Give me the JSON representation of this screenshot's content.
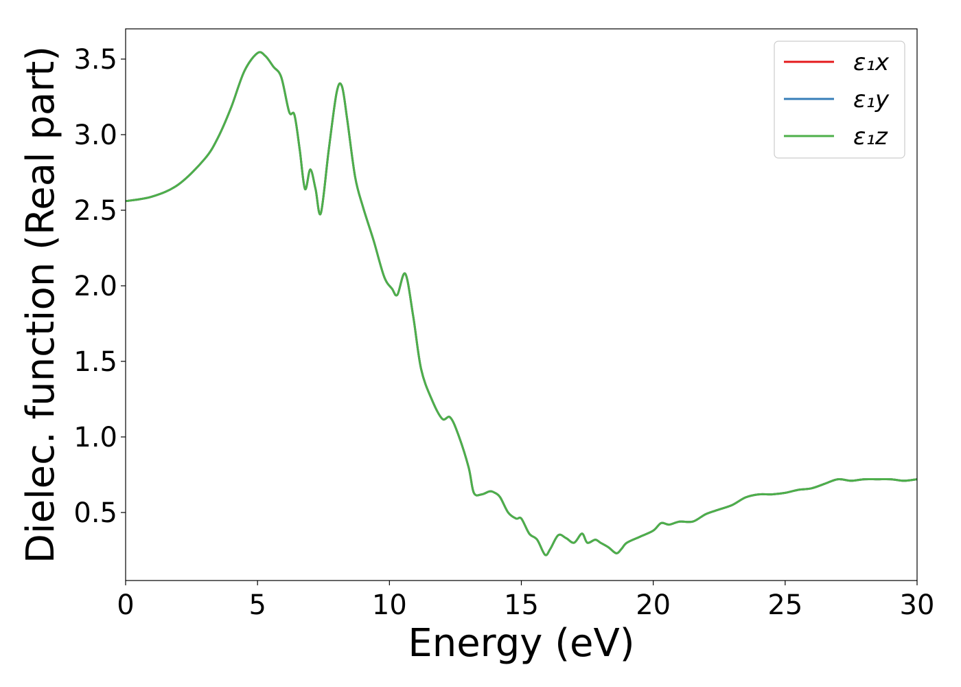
{
  "chart_data": {
    "type": "line",
    "title": "",
    "xlabel": "Energy (eV)",
    "ylabel": "Dielec. function (Real part)",
    "xlim": [
      0,
      30
    ],
    "ylim": [
      0.05,
      3.7
    ],
    "xticks": [
      0,
      5,
      10,
      15,
      20,
      25,
      30
    ],
    "xtick_labels": [
      "0",
      "5",
      "10",
      "15",
      "20",
      "25",
      "30"
    ],
    "yticks": [
      0.5,
      1.0,
      1.5,
      2.0,
      2.5,
      3.0,
      3.5
    ],
    "ytick_labels": [
      "0.5",
      "1.0",
      "1.5",
      "2.0",
      "2.5",
      "3.0",
      "3.5"
    ],
    "grid": false,
    "legend_position": "top-right",
    "x": [
      0,
      1,
      2,
      3,
      3.5,
      4,
      4.5,
      5,
      5.3,
      5.6,
      5.9,
      6.2,
      6.4,
      6.6,
      6.8,
      7.0,
      7.2,
      7.4,
      7.7,
      8.0,
      8.2,
      8.4,
      8.7,
      9.0,
      9.4,
      9.8,
      10.1,
      10.3,
      10.6,
      10.9,
      11.2,
      11.6,
      12.0,
      12.3,
      12.6,
      13.0,
      13.2,
      13.5,
      13.8,
      14.0,
      14.2,
      14.5,
      14.8,
      15.0,
      15.3,
      15.6,
      15.9,
      16.1,
      16.4,
      16.7,
      17.0,
      17.3,
      17.5,
      17.8,
      18.0,
      18.3,
      18.6,
      18.8,
      19.0,
      19.5,
      20.0,
      20.3,
      20.6,
      21.0,
      21.5,
      22.0,
      22.5,
      23.0,
      23.5,
      24.0,
      24.5,
      25.0,
      25.5,
      26.0,
      26.5,
      27.0,
      27.5,
      28.0,
      28.5,
      29.0,
      29.5,
      30.0
    ],
    "series": [
      {
        "name": "ε₁x",
        "color": "#e41a1c",
        "y": [
          2.56,
          2.59,
          2.67,
          2.84,
          2.98,
          3.18,
          3.42,
          3.54,
          3.52,
          3.45,
          3.38,
          3.15,
          3.13,
          2.9,
          2.64,
          2.77,
          2.64,
          2.48,
          2.9,
          3.28,
          3.32,
          3.1,
          2.72,
          2.52,
          2.3,
          2.06,
          1.98,
          1.94,
          2.08,
          1.8,
          1.45,
          1.25,
          1.12,
          1.13,
          1.02,
          0.8,
          0.63,
          0.62,
          0.64,
          0.63,
          0.6,
          0.5,
          0.46,
          0.46,
          0.36,
          0.32,
          0.22,
          0.26,
          0.35,
          0.33,
          0.3,
          0.36,
          0.3,
          0.32,
          0.3,
          0.27,
          0.23,
          0.26,
          0.3,
          0.34,
          0.38,
          0.43,
          0.42,
          0.44,
          0.44,
          0.49,
          0.52,
          0.55,
          0.6,
          0.62,
          0.62,
          0.63,
          0.65,
          0.66,
          0.69,
          0.72,
          0.71,
          0.72,
          0.72,
          0.72,
          0.71,
          0.72
        ]
      },
      {
        "name": "ε₁y",
        "color": "#377eb8",
        "y": [
          2.56,
          2.59,
          2.67,
          2.84,
          2.98,
          3.18,
          3.42,
          3.54,
          3.52,
          3.45,
          3.38,
          3.15,
          3.13,
          2.9,
          2.64,
          2.77,
          2.64,
          2.48,
          2.9,
          3.28,
          3.32,
          3.1,
          2.72,
          2.52,
          2.3,
          2.06,
          1.98,
          1.94,
          2.08,
          1.8,
          1.45,
          1.25,
          1.12,
          1.13,
          1.02,
          0.8,
          0.63,
          0.62,
          0.64,
          0.63,
          0.6,
          0.5,
          0.46,
          0.46,
          0.36,
          0.32,
          0.22,
          0.26,
          0.35,
          0.33,
          0.3,
          0.36,
          0.3,
          0.32,
          0.3,
          0.27,
          0.23,
          0.26,
          0.3,
          0.34,
          0.38,
          0.43,
          0.42,
          0.44,
          0.44,
          0.49,
          0.52,
          0.55,
          0.6,
          0.62,
          0.62,
          0.63,
          0.65,
          0.66,
          0.69,
          0.72,
          0.71,
          0.72,
          0.72,
          0.72,
          0.71,
          0.72
        ]
      },
      {
        "name": "ε₁z",
        "color": "#4daf4a",
        "y": [
          2.56,
          2.59,
          2.67,
          2.84,
          2.98,
          3.18,
          3.42,
          3.54,
          3.52,
          3.45,
          3.38,
          3.15,
          3.13,
          2.9,
          2.64,
          2.77,
          2.64,
          2.48,
          2.9,
          3.28,
          3.32,
          3.1,
          2.72,
          2.52,
          2.3,
          2.06,
          1.98,
          1.94,
          2.08,
          1.8,
          1.45,
          1.25,
          1.12,
          1.13,
          1.02,
          0.8,
          0.63,
          0.62,
          0.64,
          0.63,
          0.6,
          0.5,
          0.46,
          0.46,
          0.36,
          0.32,
          0.22,
          0.26,
          0.35,
          0.33,
          0.3,
          0.36,
          0.3,
          0.32,
          0.3,
          0.27,
          0.23,
          0.26,
          0.3,
          0.34,
          0.38,
          0.43,
          0.42,
          0.44,
          0.44,
          0.49,
          0.52,
          0.55,
          0.6,
          0.62,
          0.62,
          0.63,
          0.65,
          0.66,
          0.69,
          0.72,
          0.71,
          0.72,
          0.72,
          0.72,
          0.71,
          0.72
        ]
      }
    ]
  }
}
